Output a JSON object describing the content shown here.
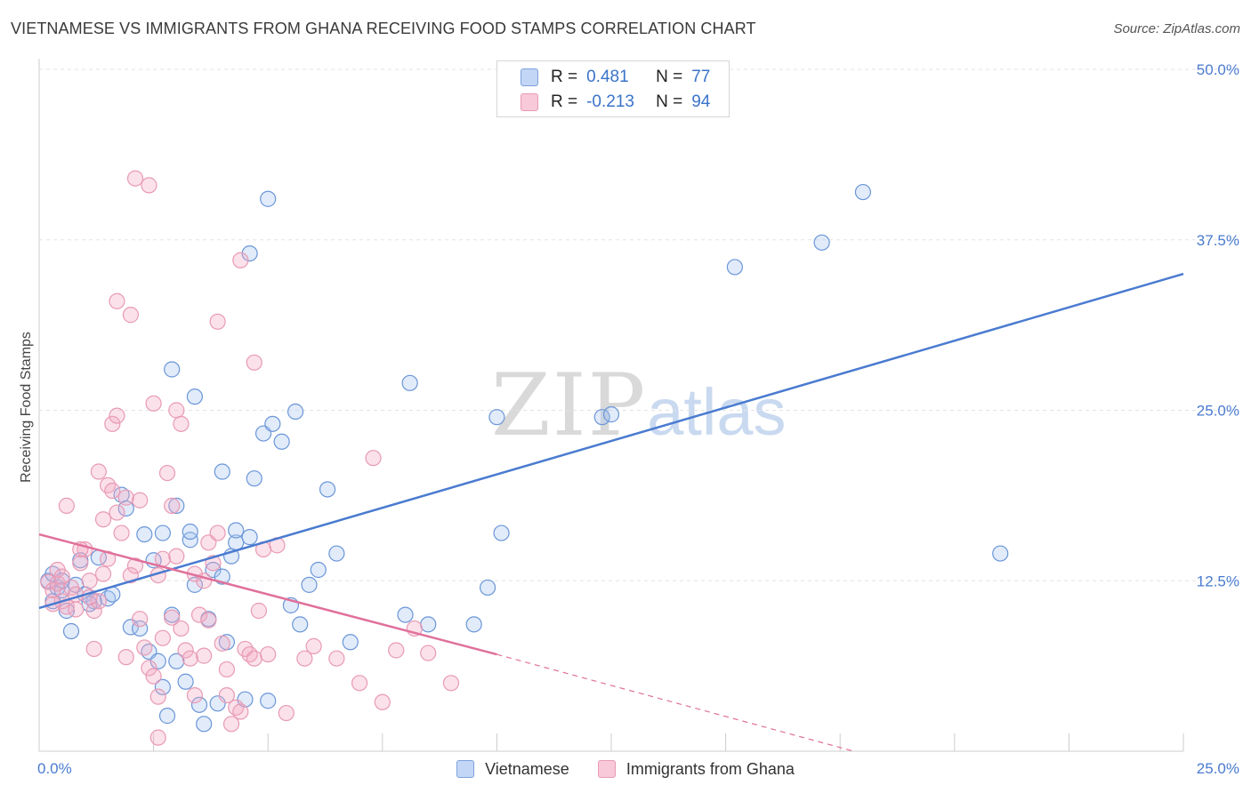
{
  "title": "VIETNAMESE VS IMMIGRANTS FROM GHANA RECEIVING FOOD STAMPS CORRELATION CHART",
  "source": "Source: ZipAtlas.com",
  "watermark": {
    "zip": "ZIP",
    "atlas": "atlas"
  },
  "legend": {
    "r_label": "R =",
    "n_label": "N =",
    "series": [
      {
        "r": "0.481",
        "n": "77"
      },
      {
        "r": "-0.213",
        "n": "94"
      }
    ]
  },
  "bottom_legend": [
    "Vietnamese",
    "Immigrants from Ghana"
  ],
  "chart_data": {
    "type": "scatter",
    "title": "VIETNAMESE VS IMMIGRANTS FROM GHANA RECEIVING FOOD STAMPS CORRELATION CHART",
    "xlabel": "",
    "ylabel": "Receiving Food Stamps",
    "xlim": [
      0,
      25
    ],
    "ylim": [
      0,
      50
    ],
    "x_tick_labels": [
      "0.0%",
      "25.0%"
    ],
    "y_ticks": [
      12.5,
      25.0,
      37.5,
      50.0
    ],
    "y_tick_labels": [
      "12.5%",
      "25.0%",
      "37.5%",
      "50.0%"
    ],
    "grid": true,
    "colors": {
      "Vietnamese": "#4a7bd0",
      "Immigrants from Ghana": "#e0709a"
    },
    "series": [
      {
        "name": "Vietnamese",
        "r": 0.481,
        "n": 77,
        "trend": {
          "x": [
            0.0,
            25.0
          ],
          "y": [
            10.5,
            35.0
          ]
        },
        "points": [
          [
            0.2,
            12.5
          ],
          [
            0.3,
            11.0
          ],
          [
            0.4,
            12.0
          ],
          [
            0.5,
            11.8
          ],
          [
            0.3,
            13.0
          ],
          [
            0.6,
            10.3
          ],
          [
            0.8,
            12.2
          ],
          [
            1.0,
            11.5
          ],
          [
            1.2,
            11.0
          ],
          [
            0.7,
            8.8
          ],
          [
            1.1,
            10.8
          ],
          [
            0.9,
            14.0
          ],
          [
            1.3,
            14.2
          ],
          [
            1.5,
            11.2
          ],
          [
            1.6,
            11.5
          ],
          [
            1.8,
            18.8
          ],
          [
            1.9,
            17.8
          ],
          [
            2.0,
            9.1
          ],
          [
            2.2,
            9.0
          ],
          [
            2.4,
            7.3
          ],
          [
            2.5,
            14.0
          ],
          [
            2.6,
            6.6
          ],
          [
            2.7,
            4.7
          ],
          [
            2.8,
            2.6
          ],
          [
            2.9,
            10.0
          ],
          [
            3.0,
            6.6
          ],
          [
            3.2,
            5.1
          ],
          [
            3.3,
            15.5
          ],
          [
            3.4,
            12.2
          ],
          [
            3.5,
            3.4
          ],
          [
            3.6,
            2.0
          ],
          [
            3.7,
            9.7
          ],
          [
            3.8,
            13.3
          ],
          [
            4.0,
            12.8
          ],
          [
            4.1,
            8.0
          ],
          [
            4.2,
            14.3
          ],
          [
            4.3,
            15.3
          ],
          [
            4.5,
            3.8
          ],
          [
            4.6,
            15.7
          ],
          [
            4.7,
            20.0
          ],
          [
            4.9,
            23.3
          ],
          [
            5.1,
            24.0
          ],
          [
            5.3,
            22.7
          ],
          [
            5.5,
            10.7
          ],
          [
            5.7,
            9.3
          ],
          [
            5.9,
            12.2
          ],
          [
            6.1,
            13.3
          ],
          [
            6.3,
            19.2
          ],
          [
            6.5,
            14.5
          ],
          [
            6.8,
            8.0
          ],
          [
            5.0,
            3.7
          ],
          [
            3.9,
            3.5
          ],
          [
            2.7,
            16.0
          ],
          [
            2.3,
            15.9
          ],
          [
            3.0,
            18.0
          ],
          [
            3.3,
            16.1
          ],
          [
            4.3,
            16.2
          ],
          [
            4.0,
            20.5
          ],
          [
            5.6,
            24.9
          ],
          [
            2.9,
            28.0
          ],
          [
            3.4,
            26.0
          ],
          [
            4.6,
            36.5
          ],
          [
            5.0,
            40.5
          ],
          [
            8.0,
            10.0
          ],
          [
            8.5,
            9.3
          ],
          [
            9.5,
            9.3
          ],
          [
            9.8,
            12.0
          ],
          [
            10.0,
            24.5
          ],
          [
            10.1,
            16.0
          ],
          [
            12.3,
            24.5
          ],
          [
            12.5,
            24.7
          ],
          [
            8.1,
            27.0
          ],
          [
            15.2,
            35.5
          ],
          [
            17.1,
            37.3
          ],
          [
            18.0,
            41.0
          ],
          [
            21.0,
            14.5
          ],
          [
            0.5,
            12.5
          ]
        ]
      },
      {
        "name": "Immigrants from Ghana",
        "r": -0.213,
        "n": 94,
        "trend": {
          "x": [
            0.0,
            10.0
          ],
          "y": [
            15.9,
            7.1
          ]
        },
        "trend_dashed": {
          "x": [
            10.0,
            17.8
          ],
          "y": [
            7.1,
            0.0
          ]
        },
        "points": [
          [
            0.2,
            12.4
          ],
          [
            0.3,
            11.8
          ],
          [
            0.4,
            12.3
          ],
          [
            0.5,
            11.0
          ],
          [
            0.6,
            10.6
          ],
          [
            0.4,
            13.3
          ],
          [
            0.7,
            12.0
          ],
          [
            0.8,
            11.5
          ],
          [
            0.9,
            13.8
          ],
          [
            1.0,
            14.8
          ],
          [
            1.1,
            12.5
          ],
          [
            1.2,
            10.3
          ],
          [
            1.3,
            11.0
          ],
          [
            1.4,
            13.0
          ],
          [
            1.5,
            19.5
          ],
          [
            1.6,
            19.1
          ],
          [
            1.7,
            17.5
          ],
          [
            1.8,
            16.0
          ],
          [
            1.9,
            18.6
          ],
          [
            2.0,
            12.9
          ],
          [
            2.1,
            13.6
          ],
          [
            2.2,
            9.7
          ],
          [
            2.3,
            7.6
          ],
          [
            2.4,
            6.1
          ],
          [
            2.5,
            5.5
          ],
          [
            2.6,
            4.0
          ],
          [
            2.7,
            14.1
          ],
          [
            2.8,
            20.4
          ],
          [
            2.9,
            18.0
          ],
          [
            3.0,
            14.3
          ],
          [
            3.1,
            9.0
          ],
          [
            3.2,
            7.4
          ],
          [
            3.3,
            6.8
          ],
          [
            3.4,
            4.1
          ],
          [
            3.5,
            10.0
          ],
          [
            3.6,
            7.0
          ],
          [
            3.7,
            15.3
          ],
          [
            3.8,
            13.8
          ],
          [
            3.9,
            16.0
          ],
          [
            4.0,
            7.9
          ],
          [
            4.1,
            4.1
          ],
          [
            4.2,
            2.0
          ],
          [
            4.3,
            3.2
          ],
          [
            4.4,
            2.9
          ],
          [
            4.5,
            7.5
          ],
          [
            4.6,
            7.1
          ],
          [
            4.7,
            6.8
          ],
          [
            4.8,
            10.3
          ],
          [
            5.0,
            7.1
          ],
          [
            5.2,
            15.1
          ],
          [
            5.4,
            2.8
          ],
          [
            6.0,
            7.7
          ],
          [
            6.5,
            6.8
          ],
          [
            7.0,
            5.0
          ],
          [
            7.3,
            21.5
          ],
          [
            7.5,
            3.6
          ],
          [
            7.8,
            7.4
          ],
          [
            8.2,
            9.0
          ],
          [
            8.5,
            7.2
          ],
          [
            9.0,
            5.0
          ],
          [
            0.6,
            18.0
          ],
          [
            1.3,
            20.5
          ],
          [
            1.6,
            24.0
          ],
          [
            1.7,
            24.6
          ],
          [
            1.7,
            33.0
          ],
          [
            2.0,
            32.0
          ],
          [
            2.1,
            42.0
          ],
          [
            2.5,
            25.5
          ],
          [
            2.4,
            41.5
          ],
          [
            3.0,
            25.0
          ],
          [
            3.1,
            24.0
          ],
          [
            3.9,
            31.5
          ],
          [
            4.4,
            36.0
          ],
          [
            4.7,
            28.5
          ],
          [
            2.9,
            9.8
          ],
          [
            3.6,
            12.5
          ],
          [
            2.7,
            8.3
          ],
          [
            1.9,
            6.9
          ],
          [
            1.2,
            7.5
          ],
          [
            0.9,
            14.8
          ],
          [
            0.3,
            10.8
          ],
          [
            0.5,
            12.8
          ],
          [
            1.4,
            17.0
          ],
          [
            2.6,
            12.9
          ],
          [
            3.7,
            9.6
          ],
          [
            4.1,
            6.0
          ],
          [
            4.9,
            14.8
          ],
          [
            5.8,
            6.8
          ],
          [
            2.6,
            1.0
          ],
          [
            1.1,
            11.3
          ],
          [
            1.5,
            14.1
          ],
          [
            2.2,
            18.4
          ],
          [
            3.4,
            13.0
          ],
          [
            0.8,
            10.4
          ]
        ]
      }
    ]
  }
}
